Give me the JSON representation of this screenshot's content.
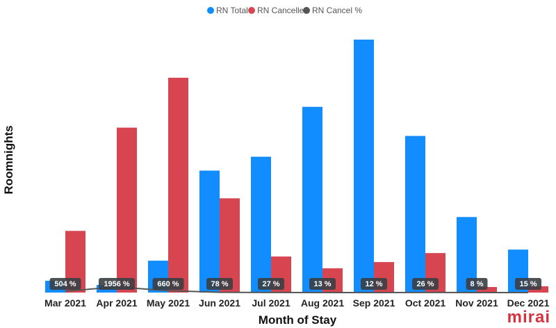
{
  "chart_data": {
    "type": "bar",
    "xlabel": "Month of Stay",
    "ylabel": "Roomnights",
    "categories": [
      "Mar 2021",
      "Apr 2021",
      "May 2021",
      "Jun 2021",
      "Jul 2021",
      "Aug 2021",
      "Sep 2021",
      "Oct 2021",
      "Nov 2021",
      "Dec 2021"
    ],
    "series": [
      {
        "name": "RN Total",
        "color": "#118dff",
        "values": [
          17,
          11,
          46,
          176,
          196,
          268,
          365,
          226,
          109,
          62
        ]
      },
      {
        "name": "RN Cancelled",
        "color": "#d64550",
        "values": [
          89,
          238,
          310,
          136,
          52,
          35,
          44,
          57,
          8,
          9
        ]
      },
      {
        "name": "RN Cancel %",
        "color": "#555555",
        "type": "line",
        "values": [
          504,
          1956,
          660,
          78,
          27,
          13,
          12,
          26,
          8,
          15
        ],
        "labels": [
          "504 %",
          "1956 %",
          "660 %",
          "78 %",
          "27 %",
          "13 %",
          "12 %",
          "26 %",
          "8 %",
          "15 %"
        ]
      }
    ],
    "legend_position": "top-center",
    "grid": false
  },
  "branding": {
    "logo_text": "mirai"
  }
}
